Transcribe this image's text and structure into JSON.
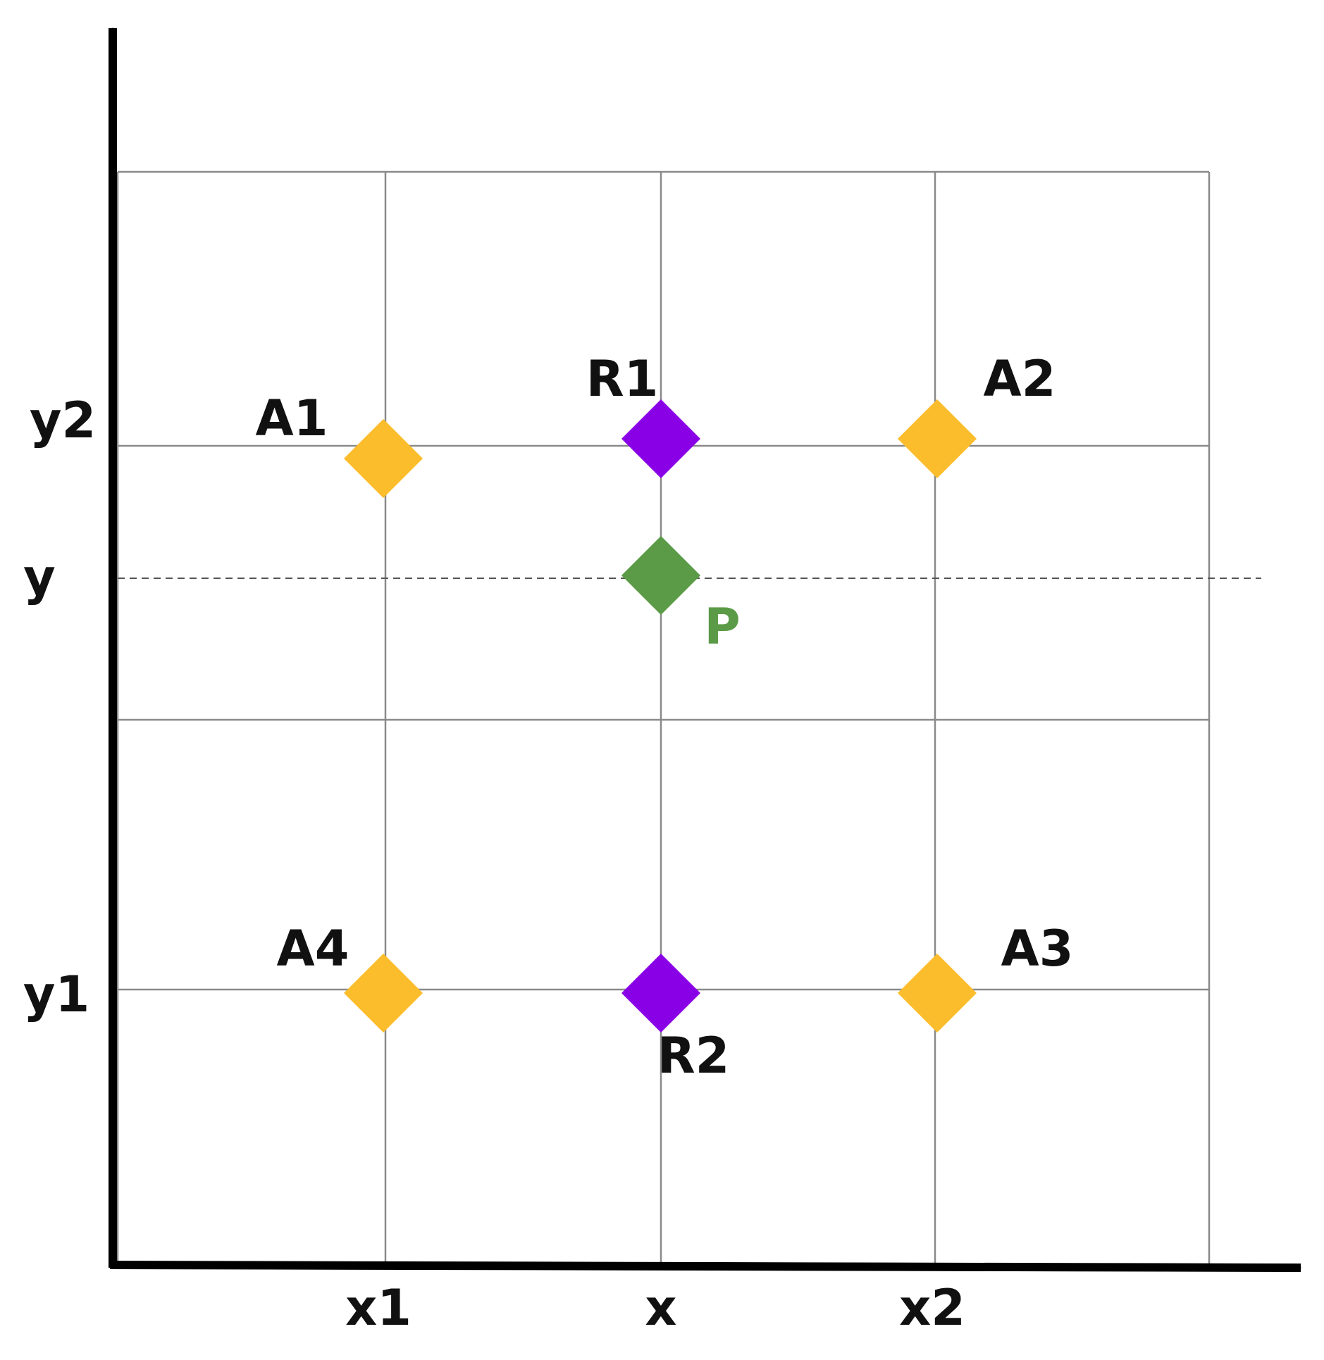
{
  "nodes": [
    {
      "label": "A1"
    },
    {
      "label": "R1"
    },
    {
      "label": "A2"
    },
    {
      "label": "P"
    },
    {
      "label": "A4"
    },
    {
      "label": "R2"
    },
    {
      "label": "A3"
    }
  ],
  "x_labels": [
    "x1",
    "x",
    "x2"
  ],
  "y_labels": [
    "y2",
    "y",
    "y1"
  ]
}
